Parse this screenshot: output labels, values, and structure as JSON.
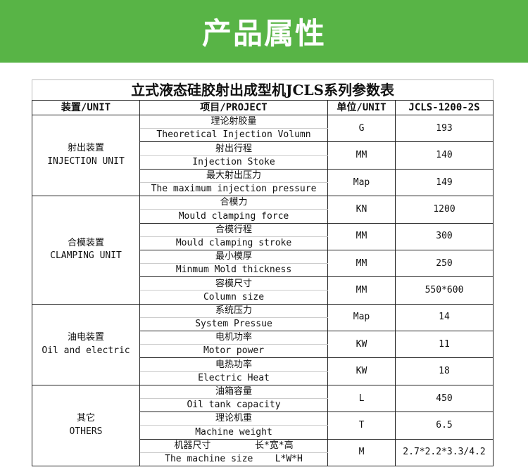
{
  "banner": {
    "title": "产品属性"
  },
  "table": {
    "title": "立式液态硅胶射出成型机JCLS系列参数表",
    "headers": [
      "装置/UNIT",
      "项目/PROJECT",
      "单位/UNIT",
      "JCLS-1200-2S"
    ],
    "groups": [
      {
        "cn": "射出装置",
        "en": "INJECTION UNIT",
        "items": [
          {
            "cn": "理论射胶量",
            "en": "Theoretical Injection Volumn",
            "unit": "G",
            "value": "193"
          },
          {
            "cn": "射出行程",
            "en": "Injection Stoke",
            "unit": "MM",
            "value": "140"
          },
          {
            "cn": "最大射出压力",
            "en": "The maximum injection pressure",
            "unit": "Map",
            "value": "149"
          }
        ]
      },
      {
        "cn": "合模装置",
        "en": "CLAMPING UNIT",
        "items": [
          {
            "cn": "合模力",
            "en": "Mould clamping force",
            "unit": "KN",
            "value": "1200"
          },
          {
            "cn": "合模行程",
            "en": "Mould clamping stroke",
            "unit": "MM",
            "value": "300"
          },
          {
            "cn": "最小模厚",
            "en": "Minmum Mold thickness",
            "unit": "MM",
            "value": "250"
          },
          {
            "cn": "容模尺寸",
            "en": "Column size",
            "unit": "MM",
            "value": "550*600"
          }
        ]
      },
      {
        "cn": "油电装置",
        "en": "Oil and electric",
        "items": [
          {
            "cn": "系统压力",
            "en": "System Pressue",
            "unit": "Map",
            "value": "14"
          },
          {
            "cn": "电机功率",
            "en": "Motor power",
            "unit": "KW",
            "value": "11"
          },
          {
            "cn": "电热功率",
            "en": "Electric Heat",
            "unit": "KW",
            "value": "18"
          }
        ]
      },
      {
        "cn": "其它",
        "en": "OTHERS",
        "items": [
          {
            "cn": "油箱容量",
            "en": "Oil tank capacity",
            "unit": "L",
            "value": "450"
          },
          {
            "cn": "理论机重",
            "en": "Machine weight",
            "unit": "T",
            "value": "6.5"
          },
          {
            "cn": "机器尺寸        长*宽*高",
            "en": "The machine size    L*W*H",
            "unit": "M",
            "value": "2.7*2.2*3.3/4.2"
          }
        ]
      }
    ]
  }
}
